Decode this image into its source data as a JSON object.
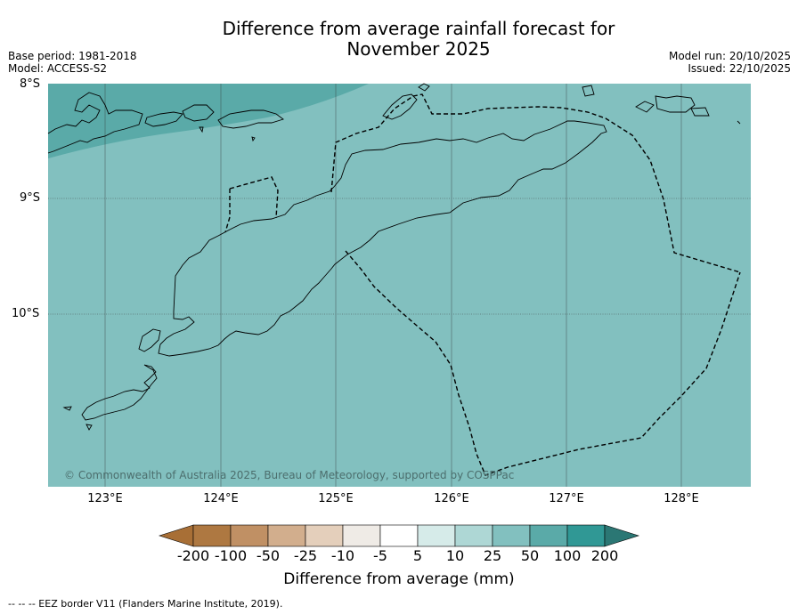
{
  "title": {
    "line1": "Difference from average rainfall forecast for",
    "line2": "November 2025"
  },
  "meta": {
    "base_period": "Base period: 1981-2018",
    "model": "Model: ACCESS-S2",
    "model_run": "Model run: 20/10/2025",
    "issued": "Issued: 22/10/2025"
  },
  "map": {
    "lat_labels": [
      "8°S",
      "9°S",
      "10°S"
    ],
    "lon_labels": [
      "123°E",
      "124°E",
      "125°E",
      "126°E",
      "127°E",
      "128°E"
    ],
    "copyright": "© Commonwealth of Australia 2025, Bureau of Meteorology, supported by COSPPac",
    "colors": {
      "ocean_25_50": "#82c0bf",
      "band_50_100": "#5aaaa8",
      "coast": "#000000"
    }
  },
  "colorbar": {
    "title": "Difference from average (mm)",
    "tick_labels": [
      "-200",
      "-100",
      "-50",
      "-25",
      "-10",
      "-5",
      "5",
      "10",
      "25",
      "50",
      "100",
      "200"
    ],
    "colors": [
      "#a86f36",
      "#ae7841",
      "#c09064",
      "#d2ae8d",
      "#e4cfbb",
      "#efebe6",
      "#ffffff",
      "#d6ebe9",
      "#aed7d5",
      "#82c0bf",
      "#5aaaa8",
      "#309895",
      "#2b7774"
    ]
  },
  "footer": "--  --  -- EEZ border V11 (Flanders Marine Institute, 2019)."
}
